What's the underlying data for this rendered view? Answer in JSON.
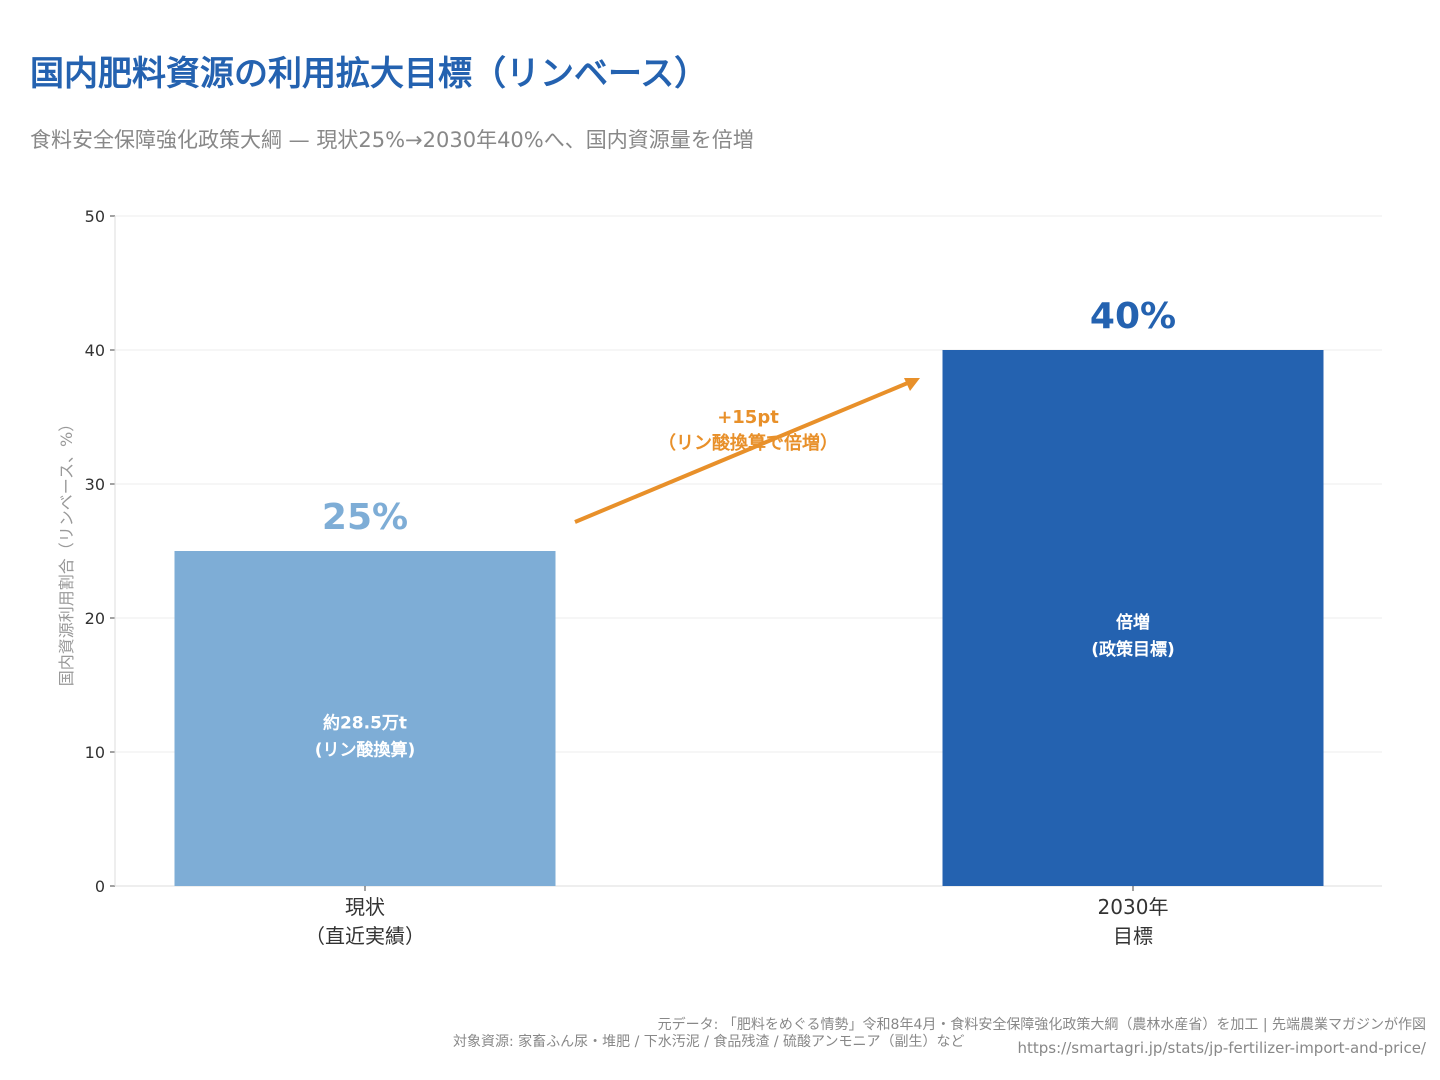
{
  "title": "国内肥料資源の利用拡大目標（リンベース）",
  "subtitle": "食料安全保障強化政策大綱 — 現状25%→2030年40%へ、国内資源量を倍増",
  "chart_data": {
    "type": "bar",
    "categories": [
      "現状\n（直近実績）",
      "2030年\n目標"
    ],
    "values": [
      25,
      40
    ],
    "value_labels": [
      "25%",
      "40%"
    ],
    "bar_labels": [
      "約28.5万t\n(リン酸換算)",
      "倍増\n(政策目標)"
    ],
    "colors": [
      "#7eadd6",
      "#2462b0"
    ],
    "ylabel": "国内資源利用割合（リンベース、%）",
    "xlabel": "",
    "ylim": [
      0,
      50
    ],
    "yticks": [
      0,
      10,
      20,
      30,
      40,
      50
    ],
    "grid": true,
    "annotation": {
      "text": "+15pt\n（リン酸換算で倍増）",
      "color": "#e8902a"
    }
  },
  "footer": {
    "source": "元データ: 「肥料をめぐる情勢」令和8年4月・食料安全保障強化政策大綱（農林水産省）を加工 | 先端農業マガジンが作図",
    "resources": "対象資源: 家畜ふん尿・堆肥 / 下水汚泥 / 食品残渣 / 硫酸アンモニア（副生）など",
    "url": "https://smartagri.jp/stats/jp-fertilizer-import-and-price/"
  }
}
